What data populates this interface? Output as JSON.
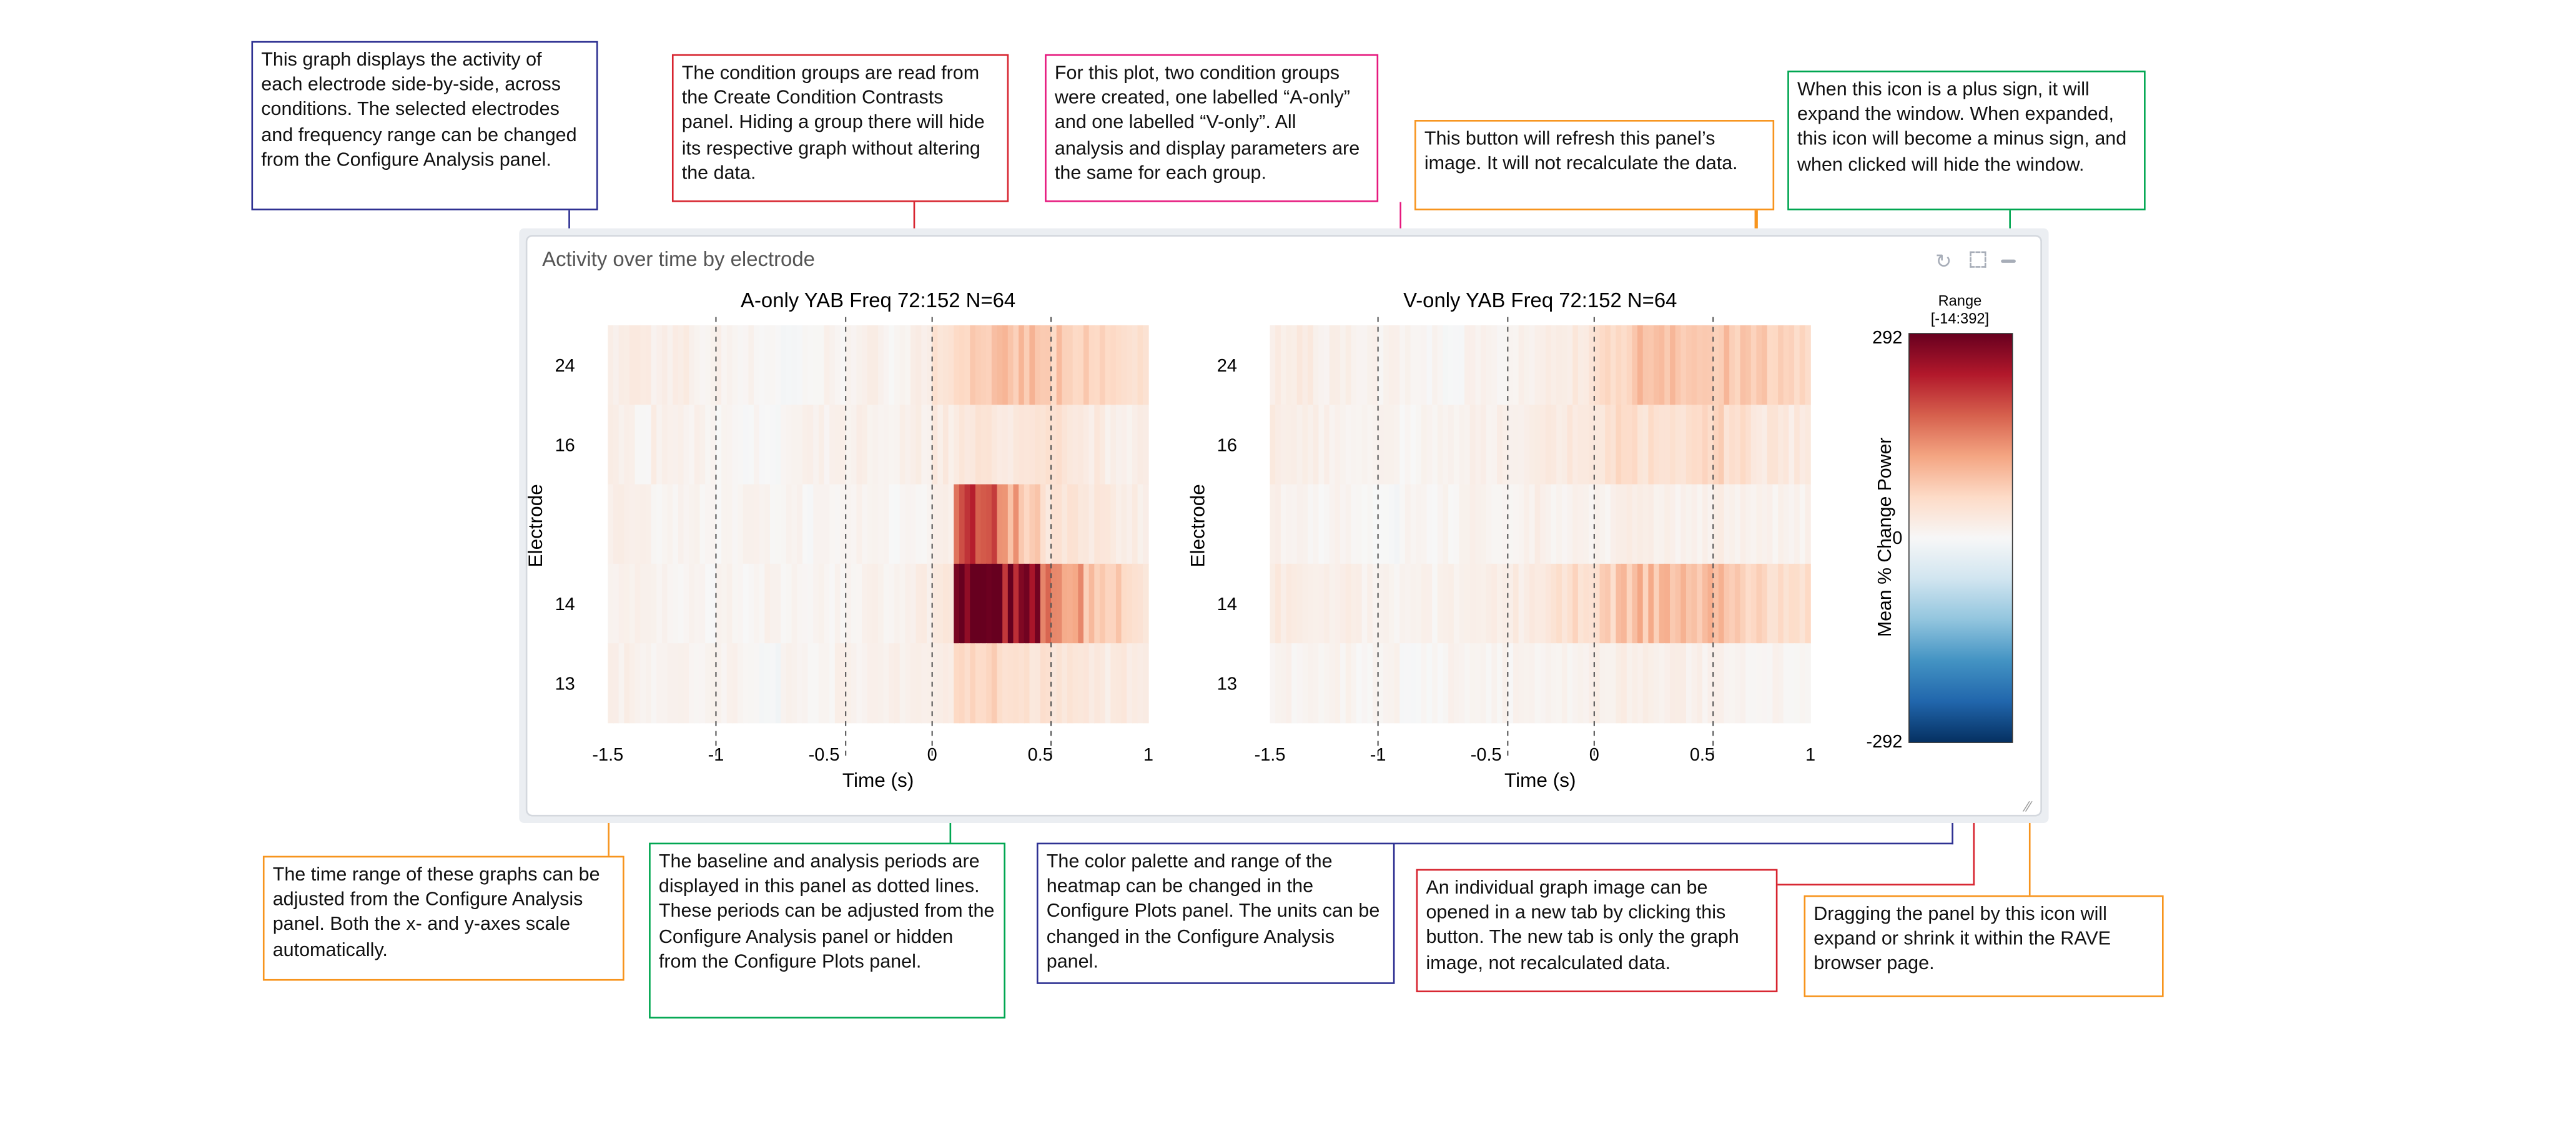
{
  "panel": {
    "title": "Activity over time by electrode",
    "icons": [
      "refresh-icon",
      "expand-icon",
      "minimize-icon",
      "resize-handle-icon"
    ]
  },
  "annotations": {
    "graph_overview": "This graph displays the activity of each electrode side-by-side, across conditions. The selected electrodes and frequency range can be changed from the Configure Analysis panel.",
    "condition_groups": "The condition groups are read from the Create Condition Contrasts panel. Hiding a group there will hide its respective graph without altering the data.",
    "two_groups": "For this plot, two condition groups were created, one labelled “A-only” and one labelled “V-only”. All analysis and display parameters are the same for each group.",
    "refresh_button": "This button will refresh this panel’s image. It will not recalculate the data.",
    "plus_icon": "When this icon is a plus sign, it will expand the window. When expanded, this icon will become a minus sign, and when clicked will hide the window.",
    "time_range": "The time range of these graphs can be adjusted from the Configure Analysis panel. Both the x- and y-axes scale automatically.",
    "baseline": "The baseline and analysis periods are displayed in this panel as dotted lines. These periods can be adjusted from the Configure Analysis panel or hidden from the Configure Plots panel.",
    "color_palette": "The color palette and range of the heatmap can be changed in the Configure Plots panel. The units can be changed in the Configure Analysis panel.",
    "new_tab": "An individual graph image can be opened in a new tab by clicking this button. The new tab is only the graph image, not recalculated data.",
    "resize": "Dragging the panel by this icon will expand or shrink it within the RAVE browser page."
  },
  "colors": {
    "navy": "#2e3192",
    "red": "#d7242f",
    "pink": "#e6197e",
    "orange": "#f7941d",
    "green": "#00a651"
  },
  "chart_data": {
    "type": "heatmap",
    "xlabel": "Time (s)",
    "ylabel": "Electrode",
    "xlim": [
      -1.5,
      1
    ],
    "xticks": [
      "-1.5",
      "-1",
      "-0.5",
      "0",
      "0.5",
      "1"
    ],
    "yticks": [
      "24",
      "16",
      "",
      "14",
      "13"
    ],
    "dashed_lines": [
      -1,
      -0.4,
      0,
      0.55
    ],
    "time_bins": [
      -1.5,
      -1.4,
      -1.3,
      -1.2,
      -1.1,
      -1.0,
      -0.9,
      -0.8,
      -0.7,
      -0.6,
      -0.5,
      -0.4,
      -0.3,
      -0.2,
      -0.1,
      0.0,
      0.1,
      0.2,
      0.3,
      0.4,
      0.5,
      0.6,
      0.7,
      0.8,
      0.9
    ],
    "colorbar": {
      "label": "Mean % Change Power",
      "title": "Range",
      "range_text": "[-14:392]",
      "min": -292,
      "max": 292,
      "ticks": [
        "292",
        "0",
        "-292"
      ],
      "palette": "RdBu"
    },
    "panels": [
      {
        "title": "A-only YAB Freq 72:152 N=64",
        "rows": [
          [
            20,
            25,
            15,
            18,
            10,
            12,
            8,
            5,
            -5,
            5,
            10,
            12,
            15,
            10,
            20,
            40,
            70,
            80,
            75,
            85,
            70,
            60,
            65,
            55,
            50
          ],
          [
            15,
            10,
            18,
            12,
            10,
            8,
            5,
            -5,
            8,
            10,
            12,
            15,
            10,
            12,
            20,
            25,
            30,
            35,
            30,
            35,
            40,
            30,
            25,
            20,
            20
          ],
          [
            15,
            18,
            10,
            12,
            8,
            5,
            10,
            5,
            8,
            5,
            5,
            10,
            8,
            5,
            10,
            20,
            200,
            170,
            110,
            70,
            40,
            35,
            30,
            25,
            20
          ],
          [
            15,
            10,
            12,
            8,
            5,
            10,
            5,
            8,
            5,
            10,
            8,
            10,
            12,
            15,
            20,
            30,
            292,
            292,
            280,
            230,
            180,
            120,
            90,
            70,
            50
          ],
          [
            18,
            15,
            12,
            10,
            8,
            10,
            5,
            -5,
            8,
            10,
            12,
            10,
            15,
            20,
            15,
            25,
            55,
            60,
            50,
            45,
            40,
            35,
            30,
            25,
            20
          ]
        ]
      },
      {
        "title": "V-only YAB Freq 72:152 N=64",
        "rows": [
          [
            20,
            25,
            15,
            18,
            10,
            12,
            8,
            5,
            -5,
            10,
            10,
            15,
            15,
            20,
            30,
            50,
            70,
            90,
            95,
            80,
            75,
            80,
            70,
            65,
            60
          ],
          [
            20,
            15,
            18,
            12,
            10,
            8,
            5,
            8,
            10,
            12,
            15,
            20,
            25,
            25,
            30,
            40,
            55,
            50,
            45,
            50,
            60,
            45,
            35,
            30,
            25
          ],
          [
            15,
            10,
            8,
            12,
            5,
            -5,
            8,
            5,
            8,
            10,
            8,
            12,
            15,
            10,
            15,
            10,
            20,
            15,
            12,
            15,
            18,
            15,
            12,
            10,
            10
          ],
          [
            25,
            20,
            15,
            18,
            12,
            10,
            8,
            10,
            12,
            15,
            20,
            25,
            30,
            40,
            50,
            60,
            80,
            90,
            95,
            85,
            100,
            70,
            60,
            55,
            45
          ],
          [
            12,
            10,
            8,
            10,
            5,
            8,
            -5,
            5,
            8,
            5,
            8,
            10,
            10,
            12,
            10,
            15,
            20,
            18,
            15,
            15,
            12,
            12,
            10,
            10,
            8
          ]
        ]
      }
    ]
  }
}
